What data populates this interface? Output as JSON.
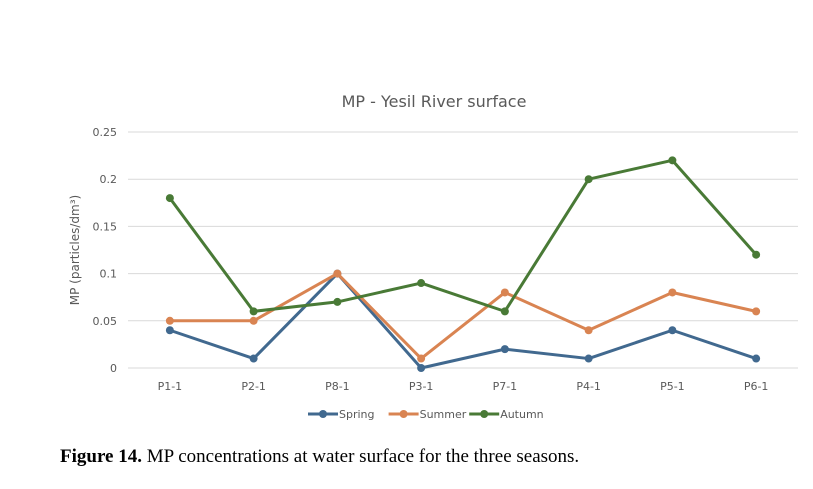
{
  "chart_data": {
    "type": "line",
    "title": "MP - Yesil River surface",
    "xlabel": "",
    "ylabel": "MP (particles/dm³)",
    "categories": [
      "P1-1",
      "P2-1",
      "P8-1",
      "P3-1",
      "P7-1",
      "P4-1",
      "P5-1",
      "P6-1"
    ],
    "ylim": [
      0,
      0.25
    ],
    "yticks": [
      0,
      0.05,
      0.1,
      0.15,
      0.2,
      0.25
    ],
    "ytick_labels": [
      "0",
      "0.05",
      "0.1",
      "0.15",
      "0.2",
      "0.25"
    ],
    "grid": true,
    "legend_position": "bottom",
    "series": [
      {
        "name": "Spring",
        "color": "#41698f",
        "values": [
          0.04,
          0.01,
          0.1,
          0.0,
          0.02,
          0.01,
          0.04,
          0.01
        ]
      },
      {
        "name": "Summer",
        "color": "#d98452",
        "values": [
          0.05,
          0.05,
          0.1,
          0.01,
          0.08,
          0.04,
          0.08,
          0.06
        ]
      },
      {
        "name": "Autumn",
        "color": "#497a36",
        "values": [
          0.18,
          0.06,
          0.07,
          0.09,
          0.06,
          0.2,
          0.22,
          0.12
        ]
      }
    ]
  },
  "caption": {
    "label": "Figure 14.",
    "text": "MP concentrations at water surface for the three seasons."
  }
}
